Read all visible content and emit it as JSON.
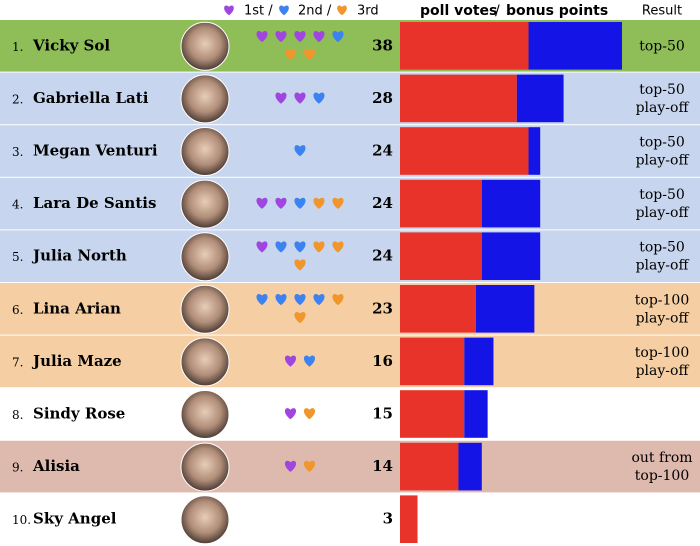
{
  "chart_data": {
    "type": "ranking",
    "header": {
      "first": "1st /",
      "second": "2nd /",
      "third": "3rd",
      "poll_label": "poll votes",
      "separator": "/",
      "bonus_label": "bonus points",
      "result_label": "Result"
    },
    "poll_color": "#e8332a",
    "bonus_color": "#1414e6",
    "heart_colors": {
      "first": "#a046e0",
      "second": "#3c82f0",
      "third": "#f0962d"
    },
    "rows": [
      {
        "rank": "1.",
        "name": "Vicky Sol",
        "hearts": {
          "first": 4,
          "second": 1,
          "third": 2
        },
        "total": 38,
        "poll_votes": 22,
        "bonus_points": 16,
        "result": [
          "top-50"
        ],
        "color": "#8fbd58"
      },
      {
        "rank": "2.",
        "name": "Gabriella Lati",
        "hearts": {
          "first": 2,
          "second": 1,
          "third": 0
        },
        "total": 28,
        "poll_votes": 20,
        "bonus_points": 8,
        "result": [
          "top-50",
          "play-off"
        ],
        "color": "#c7d6ee"
      },
      {
        "rank": "3.",
        "name": "Megan Venturi",
        "hearts": {
          "first": 0,
          "second": 1,
          "third": 0
        },
        "total": 24,
        "poll_votes": 22,
        "bonus_points": 2,
        "result": [
          "top-50",
          "play-off"
        ],
        "color": "#c7d6ee"
      },
      {
        "rank": "4.",
        "name": "Lara De Santis",
        "hearts": {
          "first": 2,
          "second": 1,
          "third": 2
        },
        "total": 24,
        "poll_votes": 14,
        "bonus_points": 10,
        "result": [
          "top-50",
          "play-off"
        ],
        "color": "#c7d6ee"
      },
      {
        "rank": "5.",
        "name": "Julia North",
        "hearts": {
          "first": 1,
          "second": 2,
          "third": 3
        },
        "total": 24,
        "poll_votes": 14,
        "bonus_points": 10,
        "result": [
          "top-50",
          "play-off"
        ],
        "color": "#c7d6ee"
      },
      {
        "rank": "6.",
        "name": "Lina Arian",
        "hearts": {
          "first": 0,
          "second": 4,
          "third": 2
        },
        "total": 23,
        "poll_votes": 13,
        "bonus_points": 10,
        "result": [
          "top-100",
          "play-off"
        ],
        "color": "#f5cea3"
      },
      {
        "rank": "7.",
        "name": "Julia Maze",
        "hearts": {
          "first": 1,
          "second": 1,
          "third": 0
        },
        "total": 16,
        "poll_votes": 11,
        "bonus_points": 5,
        "result": [
          "top-100",
          "play-off"
        ],
        "color": "#f5cea3"
      },
      {
        "rank": "8.",
        "name": "Sindy Rose",
        "hearts": {
          "first": 1,
          "second": 0,
          "third": 1
        },
        "total": 15,
        "poll_votes": 11,
        "bonus_points": 4,
        "result": [],
        "color": "#ffffff"
      },
      {
        "rank": "9.",
        "name": "Alisia",
        "hearts": {
          "first": 1,
          "second": 0,
          "third": 1
        },
        "total": 14,
        "poll_votes": 10,
        "bonus_points": 4,
        "result": [
          "out from",
          "top-100"
        ],
        "color": "#deb9ad"
      },
      {
        "rank": "10.",
        "name": "Sky Angel",
        "hearts": {
          "first": 0,
          "second": 0,
          "third": 0
        },
        "total": 3,
        "poll_votes": 3,
        "bonus_points": 0,
        "result": [],
        "color": "#ffffff"
      }
    ]
  }
}
